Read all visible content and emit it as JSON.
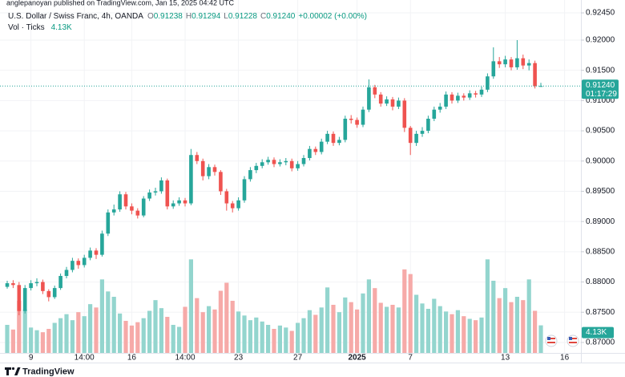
{
  "header": {
    "published": "anglepanoyan published on TradingView.com, Jan 15, 2025 04:42 UTC"
  },
  "chart_data": {
    "type": "candlestick",
    "title": "U.S. Dollar / Swiss Franc, 4h, OANDA",
    "ohlc_legend": [
      {
        "label": "O",
        "value": "0.91238"
      },
      {
        "label": "H",
        "value": "0.91294"
      },
      {
        "label": "L",
        "value": "0.91228"
      },
      {
        "label": "C",
        "value": "0.91240"
      }
    ],
    "change": "+0.00002 (+0.00%)",
    "volume_title": "Vol · Ticks",
    "volume_label": "4.13K",
    "categories": [
      null,
      null,
      null,
      null,
      "9",
      null,
      null,
      null,
      null,
      null,
      null,
      null,
      null,
      "14:00",
      null,
      null,
      null,
      null,
      null,
      null,
      null,
      "16",
      null,
      null,
      null,
      null,
      null,
      null,
      null,
      null,
      "14:00",
      null,
      null,
      null,
      null,
      null,
      null,
      null,
      null,
      "23",
      null,
      null,
      null,
      null,
      null,
      null,
      null,
      null,
      null,
      "27",
      null,
      null,
      null,
      null,
      null,
      null,
      null,
      null,
      null,
      "2025",
      null,
      null,
      null,
      null,
      null,
      null,
      null,
      null,
      "7",
      null,
      null,
      null,
      null,
      null,
      null,
      null,
      null,
      null,
      null,
      null,
      null,
      null,
      null,
      null,
      "13",
      null,
      null,
      null,
      null,
      null,
      null,
      null,
      null,
      null,
      "16"
    ],
    "open": [
      0.8792,
      0.8798,
      0.8795,
      0.8752,
      0.879,
      0.8798,
      0.88,
      0.8785,
      0.8775,
      0.879,
      0.881,
      0.882,
      0.8835,
      0.8828,
      0.884,
      0.8852,
      0.8845,
      0.888,
      0.8915,
      0.892,
      0.8945,
      0.8925,
      0.8918,
      0.891,
      0.8938,
      0.8948,
      0.895,
      0.8968,
      0.8925,
      0.893,
      0.8935,
      0.893,
      0.901,
      0.9,
      0.8975,
      0.899,
      0.8982,
      0.895,
      0.893,
      0.8922,
      0.8935,
      0.897,
      0.8985,
      0.8992,
      0.8998,
      0.9002,
      0.8995,
      0.8998,
      0.9,
      0.8988,
      0.8995,
      0.9005,
      0.902,
      0.9015,
      0.9032,
      0.9045,
      0.903,
      0.9035,
      0.907,
      0.9068,
      0.906,
      0.9085,
      0.9122,
      0.911,
      0.9095,
      0.9102,
      0.909,
      0.91,
      0.9055,
      0.903,
      0.9045,
      0.905,
      0.907,
      0.9085,
      0.909,
      0.911,
      0.91,
      0.9108,
      0.9105,
      0.9112,
      0.911,
      0.9118,
      0.914,
      0.9165,
      0.916,
      0.9168,
      0.9155,
      0.917,
      0.9158,
      0.9162,
      0.91238,
      null,
      null,
      null,
      null
    ],
    "high": [
      0.8802,
      0.8803,
      0.88,
      0.8795,
      0.8803,
      0.8806,
      0.8804,
      0.8788,
      0.8794,
      0.8814,
      0.8825,
      0.884,
      0.8839,
      0.8845,
      0.8857,
      0.8856,
      0.8885,
      0.892,
      0.8928,
      0.895,
      0.8949,
      0.893,
      0.8922,
      0.8942,
      0.8953,
      0.8956,
      0.8973,
      0.8971,
      0.8935,
      0.894,
      0.8939,
      0.902,
      0.9015,
      0.9004,
      0.8995,
      0.8994,
      0.8985,
      0.8954,
      0.8934,
      0.894,
      0.8975,
      0.899,
      0.8997,
      0.9003,
      0.9007,
      0.9006,
      0.9003,
      0.9005,
      0.9004,
      0.9,
      0.901,
      0.9025,
      0.9024,
      0.9037,
      0.905,
      0.9049,
      0.904,
      0.9075,
      0.9076,
      0.9072,
      0.909,
      0.9135,
      0.9126,
      0.9114,
      0.9107,
      0.9106,
      0.9105,
      0.9104,
      0.9058,
      0.905,
      0.9056,
      0.9075,
      0.909,
      0.9096,
      0.9115,
      0.9114,
      0.9113,
      0.9112,
      0.9117,
      0.9116,
      0.9123,
      0.9145,
      0.9188,
      0.9172,
      0.9174,
      0.9172,
      0.92,
      0.9176,
      0.9168,
      0.9166,
      0.91294,
      null,
      null,
      null,
      null
    ],
    "low": [
      0.8789,
      0.879,
      0.8745,
      0.8748,
      0.8786,
      0.8793,
      0.878,
      0.8768,
      0.8772,
      0.8787,
      0.8806,
      0.8816,
      0.8822,
      0.8824,
      0.8836,
      0.8838,
      0.8842,
      0.8876,
      0.891,
      0.8916,
      0.892,
      0.8912,
      0.8905,
      0.8907,
      0.8934,
      0.8943,
      0.8946,
      0.892,
      0.8921,
      0.8926,
      0.8925,
      0.8927,
      0.8995,
      0.8968,
      0.897,
      0.8976,
      0.8944,
      0.8918,
      0.8915,
      0.8918,
      0.8931,
      0.8966,
      0.898,
      0.8988,
      0.8994,
      0.899,
      0.8991,
      0.8993,
      0.8983,
      0.8984,
      0.8991,
      0.9001,
      0.901,
      0.9011,
      0.9028,
      0.9025,
      0.9026,
      0.9031,
      0.9062,
      0.9055,
      0.9056,
      0.9081,
      0.9104,
      0.909,
      0.9091,
      0.9084,
      0.9086,
      0.9048,
      0.901,
      0.9025,
      0.904,
      0.9046,
      0.9066,
      0.908,
      0.9086,
      0.9095,
      0.9096,
      0.91,
      0.9101,
      0.9105,
      0.9106,
      0.9114,
      0.9136,
      0.9154,
      0.9155,
      0.915,
      0.9151,
      0.9152,
      0.915,
      0.912,
      0.91228,
      null,
      null,
      null,
      null
    ],
    "close": [
      0.8798,
      0.8795,
      0.8752,
      0.879,
      0.8798,
      0.88,
      0.8785,
      0.8775,
      0.879,
      0.881,
      0.882,
      0.8835,
      0.8828,
      0.884,
      0.8852,
      0.8845,
      0.888,
      0.8915,
      0.892,
      0.8945,
      0.8925,
      0.8918,
      0.891,
      0.8938,
      0.8948,
      0.895,
      0.8968,
      0.8925,
      0.893,
      0.8935,
      0.893,
      0.901,
      0.9,
      0.8975,
      0.899,
      0.8982,
      0.895,
      0.893,
      0.8922,
      0.8935,
      0.897,
      0.8985,
      0.8992,
      0.8998,
      0.9002,
      0.8995,
      0.8998,
      0.9,
      0.8988,
      0.8995,
      0.9005,
      0.902,
      0.9015,
      0.9032,
      0.9045,
      0.903,
      0.9035,
      0.907,
      0.9068,
      0.906,
      0.9085,
      0.9122,
      0.911,
      0.9095,
      0.9102,
      0.909,
      0.91,
      0.9055,
      0.903,
      0.9045,
      0.905,
      0.907,
      0.9085,
      0.909,
      0.911,
      0.91,
      0.9108,
      0.9105,
      0.9112,
      0.911,
      0.9118,
      0.914,
      0.9165,
      0.916,
      0.9168,
      0.9155,
      0.917,
      0.9158,
      0.9162,
      0.91238,
      0.9124,
      null,
      null,
      null,
      null
    ],
    "volume": [
      4200,
      3500,
      7800,
      6500,
      3800,
      3400,
      3100,
      3600,
      4500,
      5200,
      5800,
      4900,
      6100,
      5500,
      7300,
      6800,
      11000,
      9200,
      8400,
      5900,
      4800,
      4100,
      4600,
      5200,
      6300,
      7900,
      6700,
      5400,
      4200,
      3900,
      6900,
      14000,
      8200,
      6100,
      7000,
      6500,
      9300,
      10500,
      7800,
      6200,
      5600,
      4900,
      5300,
      4700,
      4200,
      3600,
      4100,
      3800,
      3300,
      4500,
      5200,
      6400,
      5700,
      6800,
      9800,
      7200,
      6100,
      8300,
      7600,
      6500,
      8900,
      11000,
      9700,
      7500,
      6900,
      7200,
      6800,
      12500,
      11800,
      8700,
      7400,
      6600,
      8100,
      7000,
      6200,
      5800,
      6400,
      5500,
      5100,
      4900,
      5300,
      14000,
      10800,
      8200,
      9700,
      7600,
      8400,
      7900,
      11000,
      6300,
      4130,
      null,
      null,
      null,
      null
    ],
    "up_color": "#26a69a",
    "down_color": "#ef5350",
    "volume_up_color": "#93d5ce",
    "volume_down_color": "#f6aaa8",
    "ylim": [
      0.86827,
      0.92663
    ],
    "yticks": [
      {
        "value": 0.9245,
        "label": "0.92450"
      },
      {
        "value": 0.92,
        "label": "0.92000"
      },
      {
        "value": 0.915,
        "label": "0.91500"
      },
      {
        "value": 0.91,
        "label": "0.91000"
      },
      {
        "value": 0.905,
        "label": "0.90500"
      },
      {
        "value": 0.9,
        "label": "0.90000"
      },
      {
        "value": 0.895,
        "label": "0.89500"
      },
      {
        "value": 0.89,
        "label": "0.89000"
      },
      {
        "value": 0.885,
        "label": "0.88500"
      },
      {
        "value": 0.88,
        "label": "0.88000"
      },
      {
        "value": 0.875,
        "label": "0.87500"
      },
      {
        "value": 0.87,
        "label": "0.87000"
      }
    ],
    "volume_lim": [
      0,
      15000
    ],
    "last_price_label": "0.91240",
    "countdown": "01:17:29",
    "grid": true
  },
  "footer": {
    "brand": "TradingView"
  }
}
